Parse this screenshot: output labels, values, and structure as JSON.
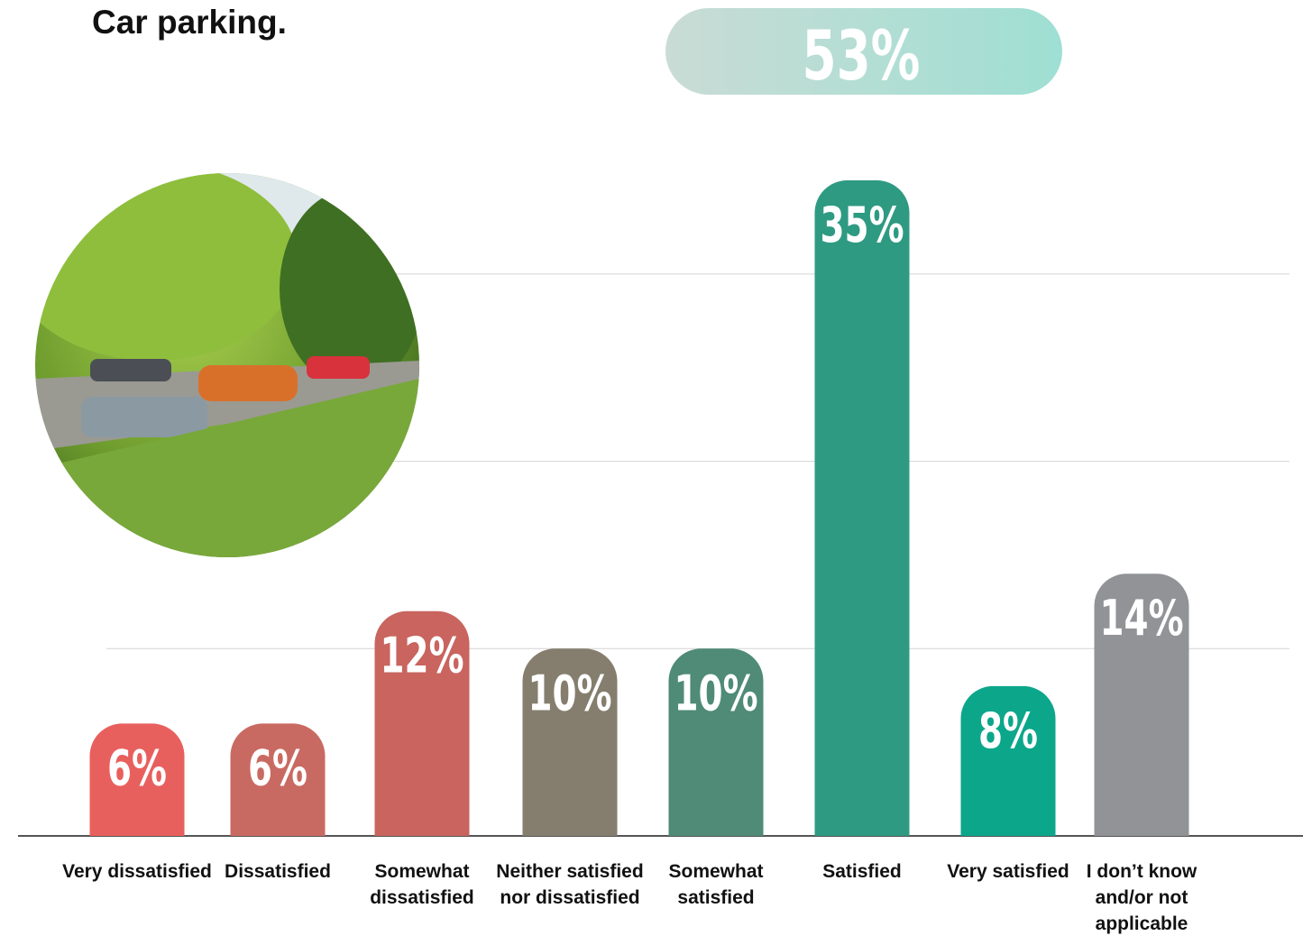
{
  "chart_data": {
    "type": "bar",
    "title": "Car parking.",
    "annotation": "53%",
    "categories": [
      "Very dissatisfied",
      "Dissatisfied",
      "Somewhat dissatisfied",
      "Neither satisfied nor dissatisfied",
      "Somewhat satisfied",
      "Satisfied",
      "Very satisfied",
      "I don’t know and/or not applicable"
    ],
    "values": [
      6,
      6,
      12,
      10,
      10,
      35,
      8,
      14
    ],
    "value_labels": [
      "6%",
      "6%",
      "12%",
      "10%",
      "10%",
      "35%",
      "8%",
      "14%"
    ],
    "colors": [
      "#e8605e",
      "#c96a62",
      "#c9645f",
      "#857e6e",
      "#4f8b77",
      "#2e9a82",
      "#0ca68b",
      "#929396"
    ],
    "ylim": [
      0,
      35
    ],
    "yticks": [
      10,
      20,
      30
    ],
    "grid": true
  }
}
